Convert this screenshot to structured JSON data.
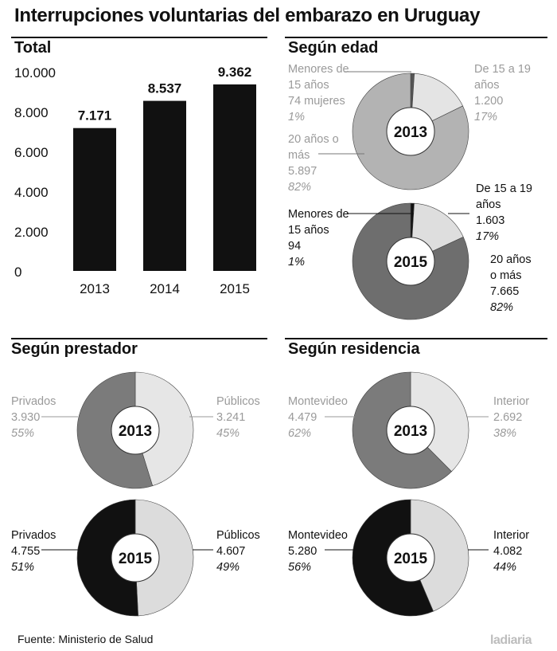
{
  "title": "Interrupciones voluntarias del embarazo en Uruguay",
  "source": "Fuente: Ministerio de Salud",
  "logo": "ladiaria",
  "chart_data": [
    {
      "type": "bar",
      "section": "Total",
      "categories": [
        "2013",
        "2014",
        "2015"
      ],
      "values": [
        7171,
        8537,
        9362
      ],
      "value_labels": [
        "7.171",
        "8.537",
        "9.362"
      ],
      "ytick_labels": [
        "10.000",
        "8.000",
        "6.000",
        "4.000",
        "2.000",
        "0"
      ],
      "ylim": [
        0,
        10000
      ],
      "bar_color": "#111111"
    },
    {
      "type": "pie",
      "section": "Según edad",
      "center_label": "2013",
      "slices": [
        {
          "id": "menores",
          "label_lines": [
            "Menores de",
            "15 años",
            "74 mujeres"
          ],
          "pct": "1%",
          "value": 74,
          "color": "#555555"
        },
        {
          "id": "15a19",
          "label_lines": [
            "De 15 a 19",
            "años",
            "1.200"
          ],
          "pct": "17%",
          "value": 1200,
          "color": "#e4e4e4"
        },
        {
          "id": "20omas",
          "label_lines": [
            "20 años o",
            "más",
            "5.897"
          ],
          "pct": "82%",
          "value": 5897,
          "color": "#b3b3b3"
        }
      ]
    },
    {
      "type": "pie",
      "section": "Según edad",
      "center_label": "2015",
      "slices": [
        {
          "id": "menores",
          "label_lines": [
            "Menores de",
            "15 años",
            "94"
          ],
          "pct": "1%",
          "value": 94,
          "color": "#111111"
        },
        {
          "id": "15a19",
          "label_lines": [
            "De 15 a 19",
            "años",
            "1.603"
          ],
          "pct": "17%",
          "value": 1603,
          "color": "#dedede"
        },
        {
          "id": "20omas",
          "label_lines": [
            "20 años",
            "o más",
            "7.665"
          ],
          "pct": "82%",
          "value": 7665,
          "color": "#6e6e6e"
        }
      ]
    },
    {
      "type": "pie",
      "section": "Según prestador",
      "center_label": "2013",
      "slices": [
        {
          "id": "publicos",
          "label_lines": [
            "Públicos",
            "3.241"
          ],
          "pct": "45%",
          "value": 3241,
          "color": "#e6e6e6"
        },
        {
          "id": "privados",
          "label_lines": [
            "Privados",
            "3.930"
          ],
          "pct": "55%",
          "value": 3930,
          "color": "#7b7b7b"
        }
      ]
    },
    {
      "type": "pie",
      "section": "Según prestador",
      "center_label": "2015",
      "slices": [
        {
          "id": "publicos",
          "label_lines": [
            "Públicos",
            "4.607"
          ],
          "pct": "49%",
          "value": 4607,
          "color": "#dcdcdc"
        },
        {
          "id": "privados",
          "label_lines": [
            "Privados",
            "4.755"
          ],
          "pct": "51%",
          "value": 4755,
          "color": "#111111"
        }
      ]
    },
    {
      "type": "pie",
      "section": "Según residencia",
      "center_label": "2013",
      "slices": [
        {
          "id": "interior",
          "label_lines": [
            "Interior",
            "2.692"
          ],
          "pct": "38%",
          "value": 2692,
          "color": "#e6e6e6"
        },
        {
          "id": "montevideo",
          "label_lines": [
            "Montevideo",
            "4.479"
          ],
          "pct": "62%",
          "value": 4479,
          "color": "#7b7b7b"
        }
      ]
    },
    {
      "type": "pie",
      "section": "Según residencia",
      "center_label": "2015",
      "slices": [
        {
          "id": "interior",
          "label_lines": [
            "Interior",
            "4.082"
          ],
          "pct": "44%",
          "value": 4082,
          "color": "#dcdcdc"
        },
        {
          "id": "montevideo",
          "label_lines": [
            "Montevideo",
            "5.280"
          ],
          "pct": "56%",
          "value": 5280,
          "color": "#111111"
        }
      ]
    }
  ]
}
